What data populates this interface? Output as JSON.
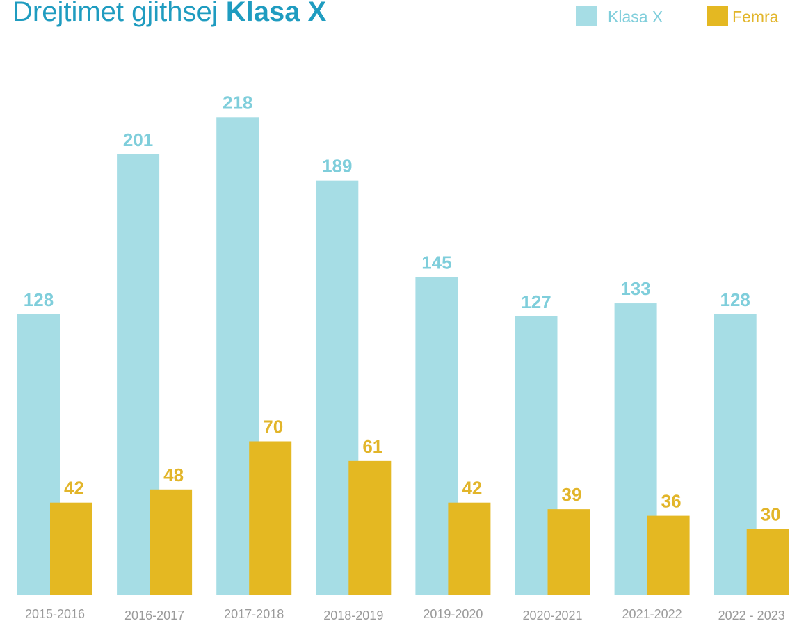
{
  "chart_data": {
    "type": "bar",
    "title": [
      "Drejtimet gjithsej",
      "Klasa X"
    ],
    "categories": [
      "2015-2016",
      "2016-2017",
      "2017-2018",
      "2018-2019",
      "2019-2020",
      "2020-2021",
      "2021-2022",
      "2022 - 2023"
    ],
    "series": [
      {
        "name": "Klasa X",
        "color": "#a6dde5",
        "label_color": "#7fcedb",
        "values": [
          128,
          201,
          218,
          189,
          145,
          127,
          133,
          128
        ]
      },
      {
        "name": "Femra",
        "color": "#e4b822",
        "label_color": "#e2b52a",
        "values": [
          42,
          48,
          70,
          61,
          42,
          39,
          36,
          30
        ]
      }
    ],
    "legend": "top-right"
  }
}
